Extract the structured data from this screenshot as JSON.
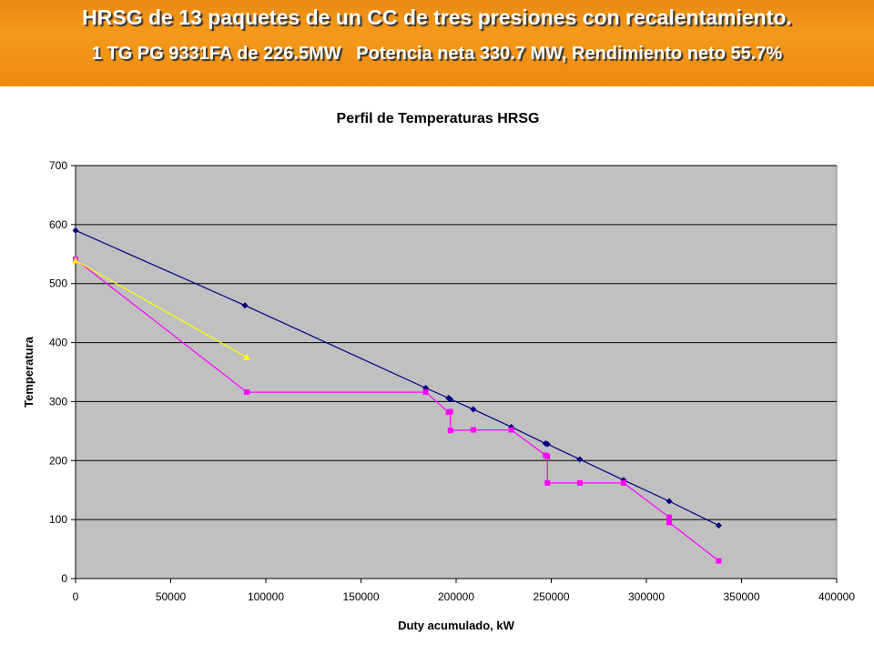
{
  "header": {
    "title": "HRSG de 13 paquetes de un CC de tres presiones con recalentamiento.",
    "subtitle": "1 TG PG 9331FA de 226.5MW   Potencia neta 330.7 MW, Rendimiento neto 55.7%"
  },
  "chart_data": {
    "type": "line",
    "title": "Perfil de Temperaturas HRSG",
    "xlabel": "Duty acumulado, kW",
    "ylabel": "Temperatura",
    "xlim": [
      0,
      400000
    ],
    "ylim": [
      0,
      700
    ],
    "xticks": [
      0,
      50000,
      100000,
      150000,
      200000,
      250000,
      300000,
      350000,
      400000
    ],
    "yticks": [
      0,
      100,
      200,
      300,
      400,
      500,
      600,
      700
    ],
    "grid": "horizontal",
    "plot_background": "#c0c0c0",
    "series": [
      {
        "color": "#000080",
        "marker": "diamond",
        "points": [
          [
            0,
            590
          ],
          [
            89000,
            463
          ],
          [
            184000,
            323
          ],
          [
            196000,
            306
          ],
          [
            197000,
            304
          ],
          [
            209000,
            287
          ],
          [
            229000,
            257
          ],
          [
            247000,
            229
          ],
          [
            248000,
            228
          ],
          [
            265000,
            202
          ],
          [
            288000,
            167
          ],
          [
            312000,
            131
          ],
          [
            338000,
            90
          ]
        ]
      },
      {
        "color": "#ff00ff",
        "marker": "square",
        "points": [
          [
            0,
            541
          ],
          [
            90000,
            316
          ],
          [
            184000,
            316
          ],
          [
            196000,
            282
          ],
          [
            197000,
            283
          ],
          [
            197000,
            251
          ],
          [
            209000,
            252
          ],
          [
            229000,
            252
          ],
          [
            247000,
            209
          ],
          [
            248000,
            207
          ],
          [
            248000,
            162
          ],
          [
            265000,
            162
          ],
          [
            288000,
            162
          ],
          [
            312000,
            104
          ],
          [
            312000,
            95
          ],
          [
            338000,
            30
          ]
        ]
      },
      {
        "color": "#ffff00",
        "marker": "triangle",
        "points": [
          [
            0,
            539
          ],
          [
            90000,
            375
          ]
        ]
      }
    ]
  }
}
